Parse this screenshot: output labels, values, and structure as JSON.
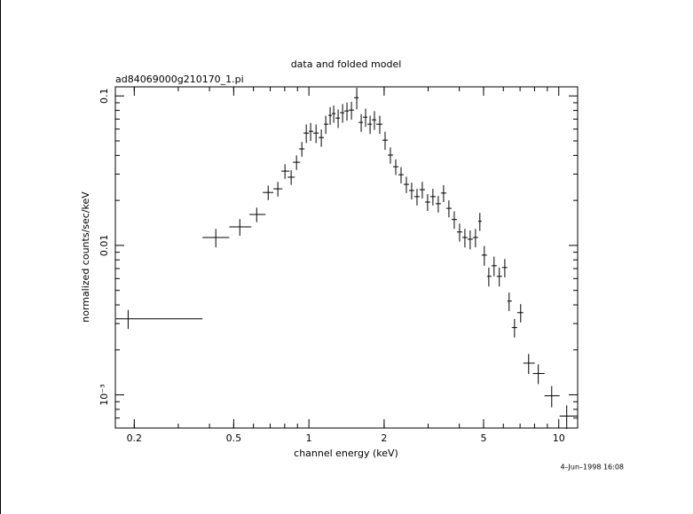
{
  "chart_data": {
    "type": "scatter",
    "title": "data and folded model",
    "subtitle": "ad84069000g210170_1.pi",
    "x_label": "channel energy (keV)",
    "y_label": "normalized counts/sec/keV",
    "annotation": "4–Jun–1998 16:08",
    "log_x": true,
    "log_y": true,
    "color": "#000000",
    "xlim": [
      0.168,
      11.9
    ],
    "ylim": [
      0.0006,
      0.115
    ],
    "xticks": [
      0.2,
      0.5,
      1,
      2,
      5,
      10
    ],
    "yticks": [
      {
        "value": 0.001,
        "label": "10⁻³"
      },
      0.01,
      0.1
    ],
    "x": [
      0.189,
      0.424,
      0.529,
      0.618,
      0.687,
      0.751,
      0.802,
      0.849,
      0.892,
      0.937,
      0.976,
      1.016,
      1.068,
      1.121,
      1.168,
      1.216,
      1.257,
      1.309,
      1.364,
      1.42,
      1.48,
      1.554,
      1.619,
      1.686,
      1.757,
      1.829,
      1.921,
      2.018,
      2.119,
      2.226,
      2.338,
      2.455,
      2.578,
      2.708,
      2.843,
      2.985,
      3.135,
      3.294,
      3.459,
      3.633,
      3.817,
      4.009,
      4.21,
      4.42,
      4.642,
      4.833,
      5.035,
      5.248,
      5.508,
      5.781,
      6.081,
      6.327,
      6.651,
      7.039,
      7.576,
      8.28,
      9.37,
      10.76
    ],
    "x_low": [
      0.169,
      0.375,
      0.48,
      0.578,
      0.654,
      0.721,
      0.776,
      0.822,
      0.863,
      0.914,
      0.952,
      1.0,
      1.041,
      1.094,
      1.149,
      1.197,
      1.236,
      1.278,
      1.331,
      1.386,
      1.445,
      1.516,
      1.58,
      1.645,
      1.714,
      1.786,
      1.86,
      1.969,
      2.069,
      2.172,
      2.281,
      2.395,
      2.517,
      2.641,
      2.774,
      2.914,
      3.061,
      3.214,
      3.375,
      3.545,
      3.724,
      3.91,
      4.108,
      4.313,
      4.53,
      4.756,
      4.915,
      5.162,
      5.377,
      5.645,
      5.929,
      6.226,
      6.486,
      6.814,
      7.211,
      7.89,
      8.77,
      10.08
    ],
    "x_high": [
      0.375,
      0.48,
      0.588,
      0.67,
      0.721,
      0.783,
      0.836,
      0.878,
      0.922,
      0.96,
      1.0,
      1.041,
      1.094,
      1.149,
      1.197,
      1.236,
      1.278,
      1.331,
      1.386,
      1.445,
      1.516,
      1.58,
      1.645,
      1.714,
      1.786,
      1.86,
      1.969,
      2.069,
      2.172,
      2.281,
      2.395,
      2.517,
      2.641,
      2.774,
      2.914,
      3.061,
      3.214,
      3.375,
      3.545,
      3.724,
      3.91,
      4.108,
      4.313,
      4.53,
      4.756,
      4.915,
      5.162,
      5.377,
      5.645,
      5.929,
      6.226,
      6.486,
      6.814,
      7.211,
      8.02,
      8.77,
      10.08,
      11.87
    ],
    "values": [
      0.00323,
      0.0113,
      0.0133,
      0.0161,
      0.0226,
      0.0239,
      0.0314,
      0.0286,
      0.036,
      0.0442,
      0.0564,
      0.058,
      0.0564,
      0.0527,
      0.0647,
      0.0741,
      0.0762,
      0.0711,
      0.0772,
      0.0793,
      0.0804,
      0.0973,
      0.0665,
      0.0721,
      0.0647,
      0.0692,
      0.0647,
      0.0506,
      0.0402,
      0.0336,
      0.0297,
      0.0256,
      0.0233,
      0.0212,
      0.0236,
      0.0195,
      0.0212,
      0.019,
      0.0224,
      0.0177,
      0.0149,
      0.0123,
      0.0113,
      0.011,
      0.0113,
      0.0145,
      0.00861,
      0.00621,
      0.00731,
      0.00621,
      0.00711,
      0.00424,
      0.00282,
      0.00355,
      0.00163,
      0.00139,
      0.000986,
      0.000721
    ],
    "y_err": [
      0.00047,
      0.0016,
      0.0017,
      0.0018,
      0.0025,
      0.0027,
      0.0035,
      0.0032,
      0.004,
      0.005,
      0.008,
      0.008,
      0.008,
      0.007,
      0.009,
      0.01,
      0.01,
      0.01,
      0.011,
      0.011,
      0.011,
      0.016,
      0.009,
      0.01,
      0.009,
      0.01,
      0.009,
      0.007,
      0.005,
      0.004,
      0.0037,
      0.0032,
      0.003,
      0.0027,
      0.003,
      0.0025,
      0.0027,
      0.0024,
      0.0029,
      0.0023,
      0.002,
      0.0017,
      0.0016,
      0.0016,
      0.0016,
      0.002,
      0.0013,
      0.0009,
      0.0011,
      0.0009,
      0.001,
      0.0006,
      0.0004,
      0.0005,
      0.00025,
      0.00021,
      0.00016,
      0.00013
    ]
  }
}
